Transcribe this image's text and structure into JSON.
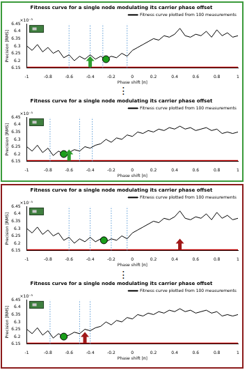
{
  "chart_data": [
    {
      "type": "line",
      "title": "Fitness curve for a single node modulating its carrier phase offset",
      "x_label": "Phase shift [π]",
      "y_label": "Precision [RMS]",
      "y_exponent_label": "×10⁻³",
      "x": [
        -1,
        -0.95,
        -0.9,
        -0.85,
        -0.8,
        -0.75,
        -0.7,
        -0.65,
        -0.6,
        -0.55,
        -0.5,
        -0.45,
        -0.4,
        -0.35,
        -0.3,
        -0.25,
        -0.2,
        -0.15,
        -0.1,
        -0.05,
        0,
        0.05,
        0.1,
        0.15,
        0.2,
        0.25,
        0.3,
        0.35,
        0.4,
        0.45,
        0.5,
        0.55,
        0.6,
        0.65,
        0.7,
        0.75,
        0.8,
        0.85,
        0.9,
        0.95,
        1
      ],
      "series": [
        {
          "name": "Fitness curve plotted from 100 measurements",
          "color": "#000000",
          "values": [
            6.3,
            6.27,
            6.31,
            6.26,
            6.29,
            6.25,
            6.27,
            6.22,
            6.24,
            6.2,
            6.23,
            6.21,
            6.24,
            6.21,
            6.23,
            6.21,
            6.23,
            6.22,
            6.25,
            6.23,
            6.27,
            6.29,
            6.31,
            6.33,
            6.35,
            6.34,
            6.37,
            6.36,
            6.38,
            6.42,
            6.37,
            6.36,
            6.38,
            6.37,
            6.4,
            6.36,
            6.41,
            6.37,
            6.39,
            6.36,
            6.37
          ]
        }
      ],
      "xlim": [
        -1,
        1
      ],
      "xticks": [
        -1,
        -0.8,
        -0.6,
        -0.4,
        -0.2,
        0,
        0.2,
        0.4,
        0.6,
        0.8,
        1
      ],
      "ylim": [
        6.15,
        6.45
      ],
      "yticks": [
        6.15,
        6.2,
        6.25,
        6.3,
        6.35,
        6.4,
        6.45
      ],
      "legend": "top-right",
      "grid": false,
      "optimum": {
        "x": -0.25,
        "y": 6.21,
        "color": "#1a9e1a",
        "marker": "circle"
      },
      "vlines": {
        "x": [
          -0.6,
          -0.4,
          -0.28,
          -0.05
        ],
        "color": "#5b9bd5",
        "line_style": "dotted"
      },
      "baseline": {
        "y": 6.155,
        "color": "#c00000"
      },
      "arrow": {
        "x": -0.4,
        "color": "#2e9e2e"
      }
    },
    {
      "type": "line",
      "title": "Fitness curve for a single node modulating its carrier phase offset",
      "x_label": "Phase shift [π]",
      "y_label": "Precision [RMS]",
      "y_exponent_label": "×10⁻³",
      "x": [
        -1,
        -0.95,
        -0.9,
        -0.85,
        -0.8,
        -0.75,
        -0.7,
        -0.65,
        -0.6,
        -0.55,
        -0.5,
        -0.45,
        -0.4,
        -0.35,
        -0.3,
        -0.25,
        -0.2,
        -0.15,
        -0.1,
        -0.05,
        0,
        0.05,
        0.1,
        0.15,
        0.2,
        0.25,
        0.3,
        0.35,
        0.4,
        0.45,
        0.5,
        0.55,
        0.6,
        0.65,
        0.7,
        0.75,
        0.8,
        0.85,
        0.9,
        0.95,
        1
      ],
      "series": [
        {
          "name": "Fitness curve plotted from 100 measurements",
          "color": "#000000",
          "values": [
            6.25,
            6.22,
            6.26,
            6.21,
            6.24,
            6.19,
            6.22,
            6.2,
            6.21,
            6.23,
            6.22,
            6.25,
            6.24,
            6.26,
            6.27,
            6.3,
            6.28,
            6.31,
            6.3,
            6.33,
            6.32,
            6.35,
            6.34,
            6.36,
            6.35,
            6.37,
            6.36,
            6.38,
            6.37,
            6.39,
            6.37,
            6.38,
            6.36,
            6.37,
            6.38,
            6.36,
            6.37,
            6.34,
            6.35,
            6.34,
            6.35
          ]
        }
      ],
      "xlim": [
        -1,
        1
      ],
      "xticks": [
        -1,
        -0.8,
        -0.6,
        -0.4,
        -0.2,
        0,
        0.2,
        0.4,
        0.6,
        0.8,
        1
      ],
      "ylim": [
        6.15,
        6.45
      ],
      "yticks": [
        6.15,
        6.2,
        6.25,
        6.3,
        6.35,
        6.4,
        6.45
      ],
      "legend": "top-right",
      "grid": false,
      "optimum": {
        "x": -0.65,
        "y": 6.2,
        "color": "#1a9e1a",
        "marker": "circle"
      },
      "vlines": {
        "x": [
          -0.78,
          -0.5,
          -0.38
        ],
        "color": "#5b9bd5",
        "line_style": "dotted"
      },
      "baseline": {
        "y": 6.155,
        "color": "#c00000"
      },
      "arrow": {
        "x": -0.6,
        "color": "#2e9e2e"
      }
    },
    {
      "type": "line",
      "title": "Fitness curve for a single node modulating its carrier phase offset",
      "x_label": "Phase shift [π]",
      "y_label": "Precision [RMS]",
      "y_exponent_label": "×10⁻³",
      "x": [
        -1,
        -0.95,
        -0.9,
        -0.85,
        -0.8,
        -0.75,
        -0.7,
        -0.65,
        -0.6,
        -0.55,
        -0.5,
        -0.45,
        -0.4,
        -0.35,
        -0.3,
        -0.25,
        -0.2,
        -0.15,
        -0.1,
        -0.05,
        0,
        0.05,
        0.1,
        0.15,
        0.2,
        0.25,
        0.3,
        0.35,
        0.4,
        0.45,
        0.5,
        0.55,
        0.6,
        0.65,
        0.7,
        0.75,
        0.8,
        0.85,
        0.9,
        0.95,
        1
      ],
      "series": [
        {
          "name": "Fitness curve plotted from 100 measurements",
          "color": "#000000",
          "values": [
            6.3,
            6.27,
            6.31,
            6.26,
            6.29,
            6.25,
            6.27,
            6.22,
            6.24,
            6.2,
            6.23,
            6.21,
            6.24,
            6.21,
            6.23,
            6.21,
            6.23,
            6.22,
            6.25,
            6.23,
            6.27,
            6.29,
            6.31,
            6.33,
            6.35,
            6.34,
            6.37,
            6.36,
            6.38,
            6.42,
            6.37,
            6.36,
            6.38,
            6.37,
            6.4,
            6.36,
            6.41,
            6.37,
            6.39,
            6.36,
            6.37
          ]
        }
      ],
      "xlim": [
        -1,
        1
      ],
      "xticks": [
        -1,
        -0.8,
        -0.6,
        -0.4,
        -0.2,
        0,
        0.2,
        0.4,
        0.6,
        0.8,
        1
      ],
      "ylim": [
        6.15,
        6.45
      ],
      "yticks": [
        6.15,
        6.2,
        6.25,
        6.3,
        6.35,
        6.4,
        6.45
      ],
      "legend": "top-right",
      "grid": false,
      "optimum": {
        "x": -0.27,
        "y": 6.22,
        "color": "#1a9e1a",
        "marker": "circle"
      },
      "vlines": {
        "x": [
          -0.6,
          -0.4,
          -0.2,
          -0.05
        ],
        "color": "#5b9bd5",
        "line_style": "dotted"
      },
      "baseline": {
        "y": 6.155,
        "color": "#c00000"
      },
      "arrow": {
        "x": 0.45,
        "color": "#a01818"
      }
    },
    {
      "type": "line",
      "title": "Fitness curve for a single node modulating its carrier phase offset",
      "x_label": "Phase shift [π]",
      "y_label": "Precision [RMS]",
      "y_exponent_label": "×10⁻³",
      "x": [
        -1,
        -0.95,
        -0.9,
        -0.85,
        -0.8,
        -0.75,
        -0.7,
        -0.65,
        -0.6,
        -0.55,
        -0.5,
        -0.45,
        -0.4,
        -0.35,
        -0.3,
        -0.25,
        -0.2,
        -0.15,
        -0.1,
        -0.05,
        0,
        0.05,
        0.1,
        0.15,
        0.2,
        0.25,
        0.3,
        0.35,
        0.4,
        0.45,
        0.5,
        0.55,
        0.6,
        0.65,
        0.7,
        0.75,
        0.8,
        0.85,
        0.9,
        0.95,
        1
      ],
      "series": [
        {
          "name": "Fitness curve plotted from 100 measurements",
          "color": "#000000",
          "values": [
            6.25,
            6.22,
            6.26,
            6.21,
            6.24,
            6.19,
            6.22,
            6.2,
            6.21,
            6.23,
            6.22,
            6.25,
            6.24,
            6.26,
            6.27,
            6.3,
            6.28,
            6.31,
            6.3,
            6.33,
            6.32,
            6.35,
            6.34,
            6.36,
            6.35,
            6.37,
            6.36,
            6.38,
            6.37,
            6.39,
            6.37,
            6.38,
            6.36,
            6.37,
            6.38,
            6.36,
            6.37,
            6.34,
            6.35,
            6.34,
            6.35
          ]
        }
      ],
      "xlim": [
        -1,
        1
      ],
      "xticks": [
        -1,
        -0.8,
        -0.6,
        -0.4,
        -0.2,
        0,
        0.2,
        0.4,
        0.6,
        0.8,
        1
      ],
      "ylim": [
        6.15,
        6.45
      ],
      "yticks": [
        6.15,
        6.2,
        6.25,
        6.3,
        6.35,
        6.4,
        6.45
      ],
      "legend": "top-right",
      "grid": false,
      "optimum": {
        "x": -0.65,
        "y": 6.2,
        "color": "#1a9e1a",
        "marker": "circle"
      },
      "vlines": {
        "x": [
          -0.78,
          -0.5,
          -0.4
        ],
        "color": "#5b9bd5",
        "line_style": "dotted"
      },
      "baseline": {
        "y": 6.155,
        "color": "#c00000"
      },
      "arrow": {
        "x": -0.45,
        "color": "#a01818"
      }
    }
  ],
  "separator": "⋮",
  "frame_colors": [
    "#3a9a3a",
    "#8b1a1a"
  ]
}
